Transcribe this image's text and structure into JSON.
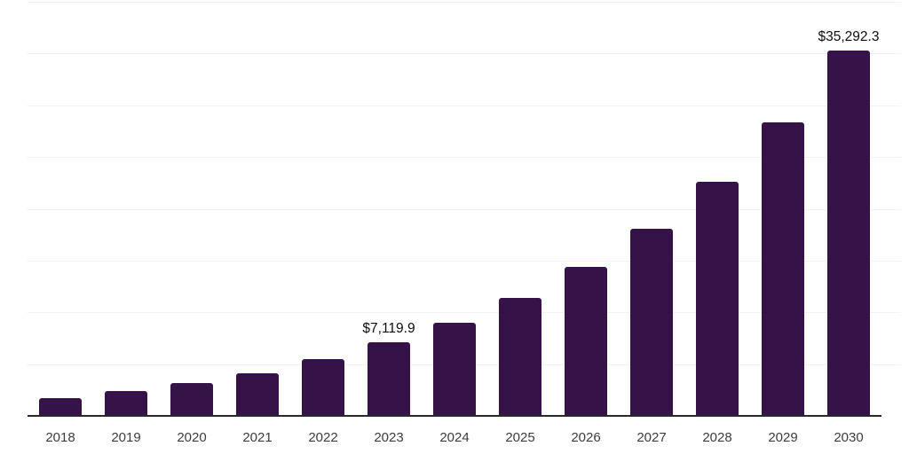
{
  "chart_data": {
    "type": "bar",
    "title": "",
    "xlabel": "",
    "ylabel": "",
    "categories": [
      "2018",
      "2019",
      "2020",
      "2021",
      "2022",
      "2023",
      "2024",
      "2025",
      "2026",
      "2027",
      "2028",
      "2029",
      "2030"
    ],
    "values": [
      1750,
      2400,
      3130,
      4150,
      5480,
      7119.9,
      9030,
      11430,
      14430,
      18100,
      22650,
      28390,
      35292.3
    ],
    "value_labels": {
      "2023": "$7,119.9",
      "2030": "$35,292.3"
    },
    "ylim": [
      0,
      40000
    ],
    "grid": true,
    "grid_step": 5000,
    "legend": false,
    "colors": {
      "bar": "#351349",
      "gridline": "#f2f2f2",
      "axis": "#282828",
      "tick_text": "#3c3c3c",
      "value_label_text": "#0d0d0d",
      "background": "#ffffff"
    }
  }
}
